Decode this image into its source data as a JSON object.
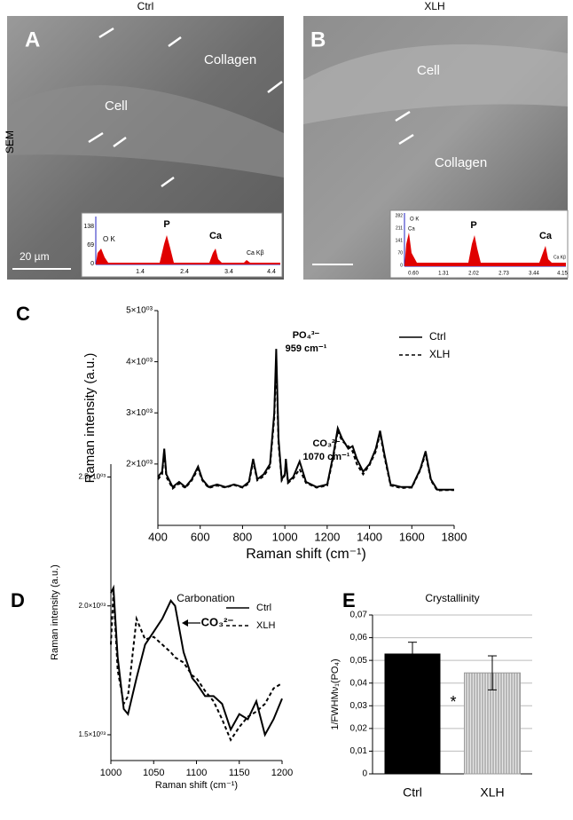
{
  "panels": {
    "a": {
      "letter": "A",
      "group": "Ctrl",
      "texts": [
        "Collagen",
        "Cell"
      ],
      "scale": "20 µm",
      "eds": {
        "peaks": [
          "O K",
          "P",
          "Ca",
          "Ca Kβ"
        ],
        "xticks": [
          "1.4",
          "2.4",
          "3.4",
          "4.4"
        ],
        "yticks": [
          "138",
          "69",
          "0"
        ]
      }
    },
    "b": {
      "letter": "B",
      "group": "XLH",
      "texts": [
        "Cell",
        "Collagen"
      ],
      "eds": {
        "peaks": [
          "O K",
          "Ca",
          "P",
          "Ca",
          "Ca Kβ"
        ],
        "xticks": [
          "0.60",
          "1.31",
          "2.02",
          "2.73",
          "3.44",
          "4.15"
        ],
        "yticks": [
          "282",
          "211",
          "141",
          "70",
          "0"
        ]
      }
    },
    "row_label": "SEM"
  },
  "chart_data": [
    {
      "type": "line",
      "label": "C",
      "xlabel": "Raman shift (cm⁻¹)",
      "ylabel": "Raman intensity (a.u.)",
      "annotations": [
        "PO₄³⁻",
        "959 cm⁻¹",
        "CO₃²⁻",
        "1070 cm⁻¹"
      ],
      "x": [
        400,
        420,
        430,
        440,
        470,
        500,
        530,
        560,
        590,
        610,
        640,
        680,
        720,
        760,
        800,
        830,
        850,
        870,
        900,
        930,
        950,
        959,
        970,
        985,
        1000,
        1005,
        1015,
        1040,
        1070,
        1100,
        1150,
        1200,
        1230,
        1250,
        1270,
        1300,
        1320,
        1340,
        1370,
        1400,
        1430,
        1450,
        1470,
        1500,
        1550,
        1600,
        1640,
        1665,
        1690,
        1720,
        1760,
        1800
      ],
      "series": [
        {
          "name": "Ctrl",
          "color": "#000000",
          "linestyle": "solid",
          "values": [
            1750,
            1850,
            2300,
            1800,
            1550,
            1650,
            1550,
            1700,
            1950,
            1700,
            1550,
            1600,
            1550,
            1600,
            1550,
            1650,
            2100,
            1700,
            1800,
            2000,
            3000,
            4250,
            2500,
            1700,
            1800,
            2100,
            1650,
            1750,
            2050,
            1650,
            1550,
            1600,
            2200,
            2700,
            2500,
            2300,
            2350,
            2100,
            1850,
            2000,
            2300,
            2650,
            2200,
            1600,
            1550,
            1550,
            1900,
            2250,
            1700,
            1500,
            1500,
            1500
          ]
        },
        {
          "name": "XLH",
          "color": "#000000",
          "linestyle": "dashed",
          "values": [
            1700,
            1800,
            2250,
            1750,
            1520,
            1620,
            1530,
            1680,
            1900,
            1680,
            1530,
            1580,
            1540,
            1590,
            1540,
            1620,
            2050,
            1680,
            1760,
            1950,
            2900,
            4050,
            2400,
            1680,
            1780,
            2050,
            1630,
            1720,
            1900,
            1630,
            1540,
            1580,
            2150,
            2650,
            2450,
            2350,
            2250,
            2000,
            1800,
            1980,
            2250,
            2600,
            2150,
            1580,
            1530,
            1540,
            1880,
            2200,
            1680,
            1480,
            1490,
            1490
          ]
        }
      ],
      "xlim": [
        400,
        1800
      ],
      "xticks": [
        400,
        600,
        800,
        1000,
        1200,
        1400,
        1600,
        1800
      ],
      "ylim": [
        800,
        5000
      ],
      "yticks": [
        {
          "value": 2000,
          "label": "2×10⁰³"
        },
        {
          "value": 3000,
          "label": "3×10⁰³"
        },
        {
          "value": 4000,
          "label": "4×10⁰³"
        },
        {
          "value": 5000,
          "label": "5×10⁰³"
        }
      ],
      "legend": "upper right"
    },
    {
      "type": "line",
      "label": "D",
      "title": "Carbonation",
      "xlabel": "Raman shift (cm⁻¹)",
      "ylabel": "Raman intensity (a.u.)",
      "annotations": [
        "CO₃²⁻"
      ],
      "x": [
        1000,
        1003,
        1008,
        1015,
        1020,
        1030,
        1040,
        1050,
        1060,
        1070,
        1075,
        1085,
        1095,
        1100,
        1110,
        1120,
        1130,
        1140,
        1150,
        1160,
        1170,
        1180,
        1190,
        1200
      ],
      "series": [
        {
          "name": "Ctrl",
          "color": "#000000",
          "linestyle": "solid",
          "values": [
            2050,
            2070,
            1800,
            1600,
            1580,
            1720,
            1850,
            1900,
            1950,
            2020,
            2000,
            1820,
            1720,
            1700,
            1650,
            1650,
            1620,
            1520,
            1580,
            1560,
            1630,
            1500,
            1560,
            1640
          ]
        },
        {
          "name": "XLH",
          "color": "#000000",
          "linestyle": "dashed",
          "values": [
            1850,
            2050,
            1750,
            1620,
            1650,
            1950,
            1870,
            1880,
            1850,
            1820,
            1800,
            1780,
            1730,
            1720,
            1670,
            1630,
            1560,
            1480,
            1530,
            1570,
            1590,
            1620,
            1680,
            1700
          ]
        }
      ],
      "xlim": [
        1000,
        1200
      ],
      "xticks": [
        1000,
        1050,
        1100,
        1150,
        1200
      ],
      "ylim": [
        1400,
        2550
      ],
      "yticks": [
        {
          "value": 1500,
          "label": "1.5×10⁰³"
        },
        {
          "value": 2000,
          "label": "2.0×10⁰³"
        },
        {
          "value": 2500,
          "label": "2.5×10⁰³"
        }
      ],
      "legend": "upper right"
    },
    {
      "type": "bar",
      "label": "E",
      "title": "Crystallinity",
      "ylabel": "1/FWHMν₁(PO₄)",
      "categories": [
        "Ctrl",
        "XLH"
      ],
      "values": [
        0.053,
        0.0445
      ],
      "errors": [
        0.005,
        0.0075
      ],
      "colors": [
        "#000000",
        "#c8c8c8"
      ],
      "annotations": [
        "*"
      ],
      "ylim": [
        0,
        0.07
      ],
      "yticks": [
        0,
        {
          "value": 0.01,
          "label": "0,01"
        },
        {
          "value": 0.02,
          "label": "0,02"
        },
        {
          "value": 0.03,
          "label": "0,03"
        },
        {
          "value": 0.04,
          "label": "0,04"
        },
        {
          "value": 0.05,
          "label": "0,05"
        },
        {
          "value": 0.06,
          "label": "0,06"
        },
        {
          "value": 0.07,
          "label": "0,07"
        }
      ],
      "grid": true
    }
  ]
}
